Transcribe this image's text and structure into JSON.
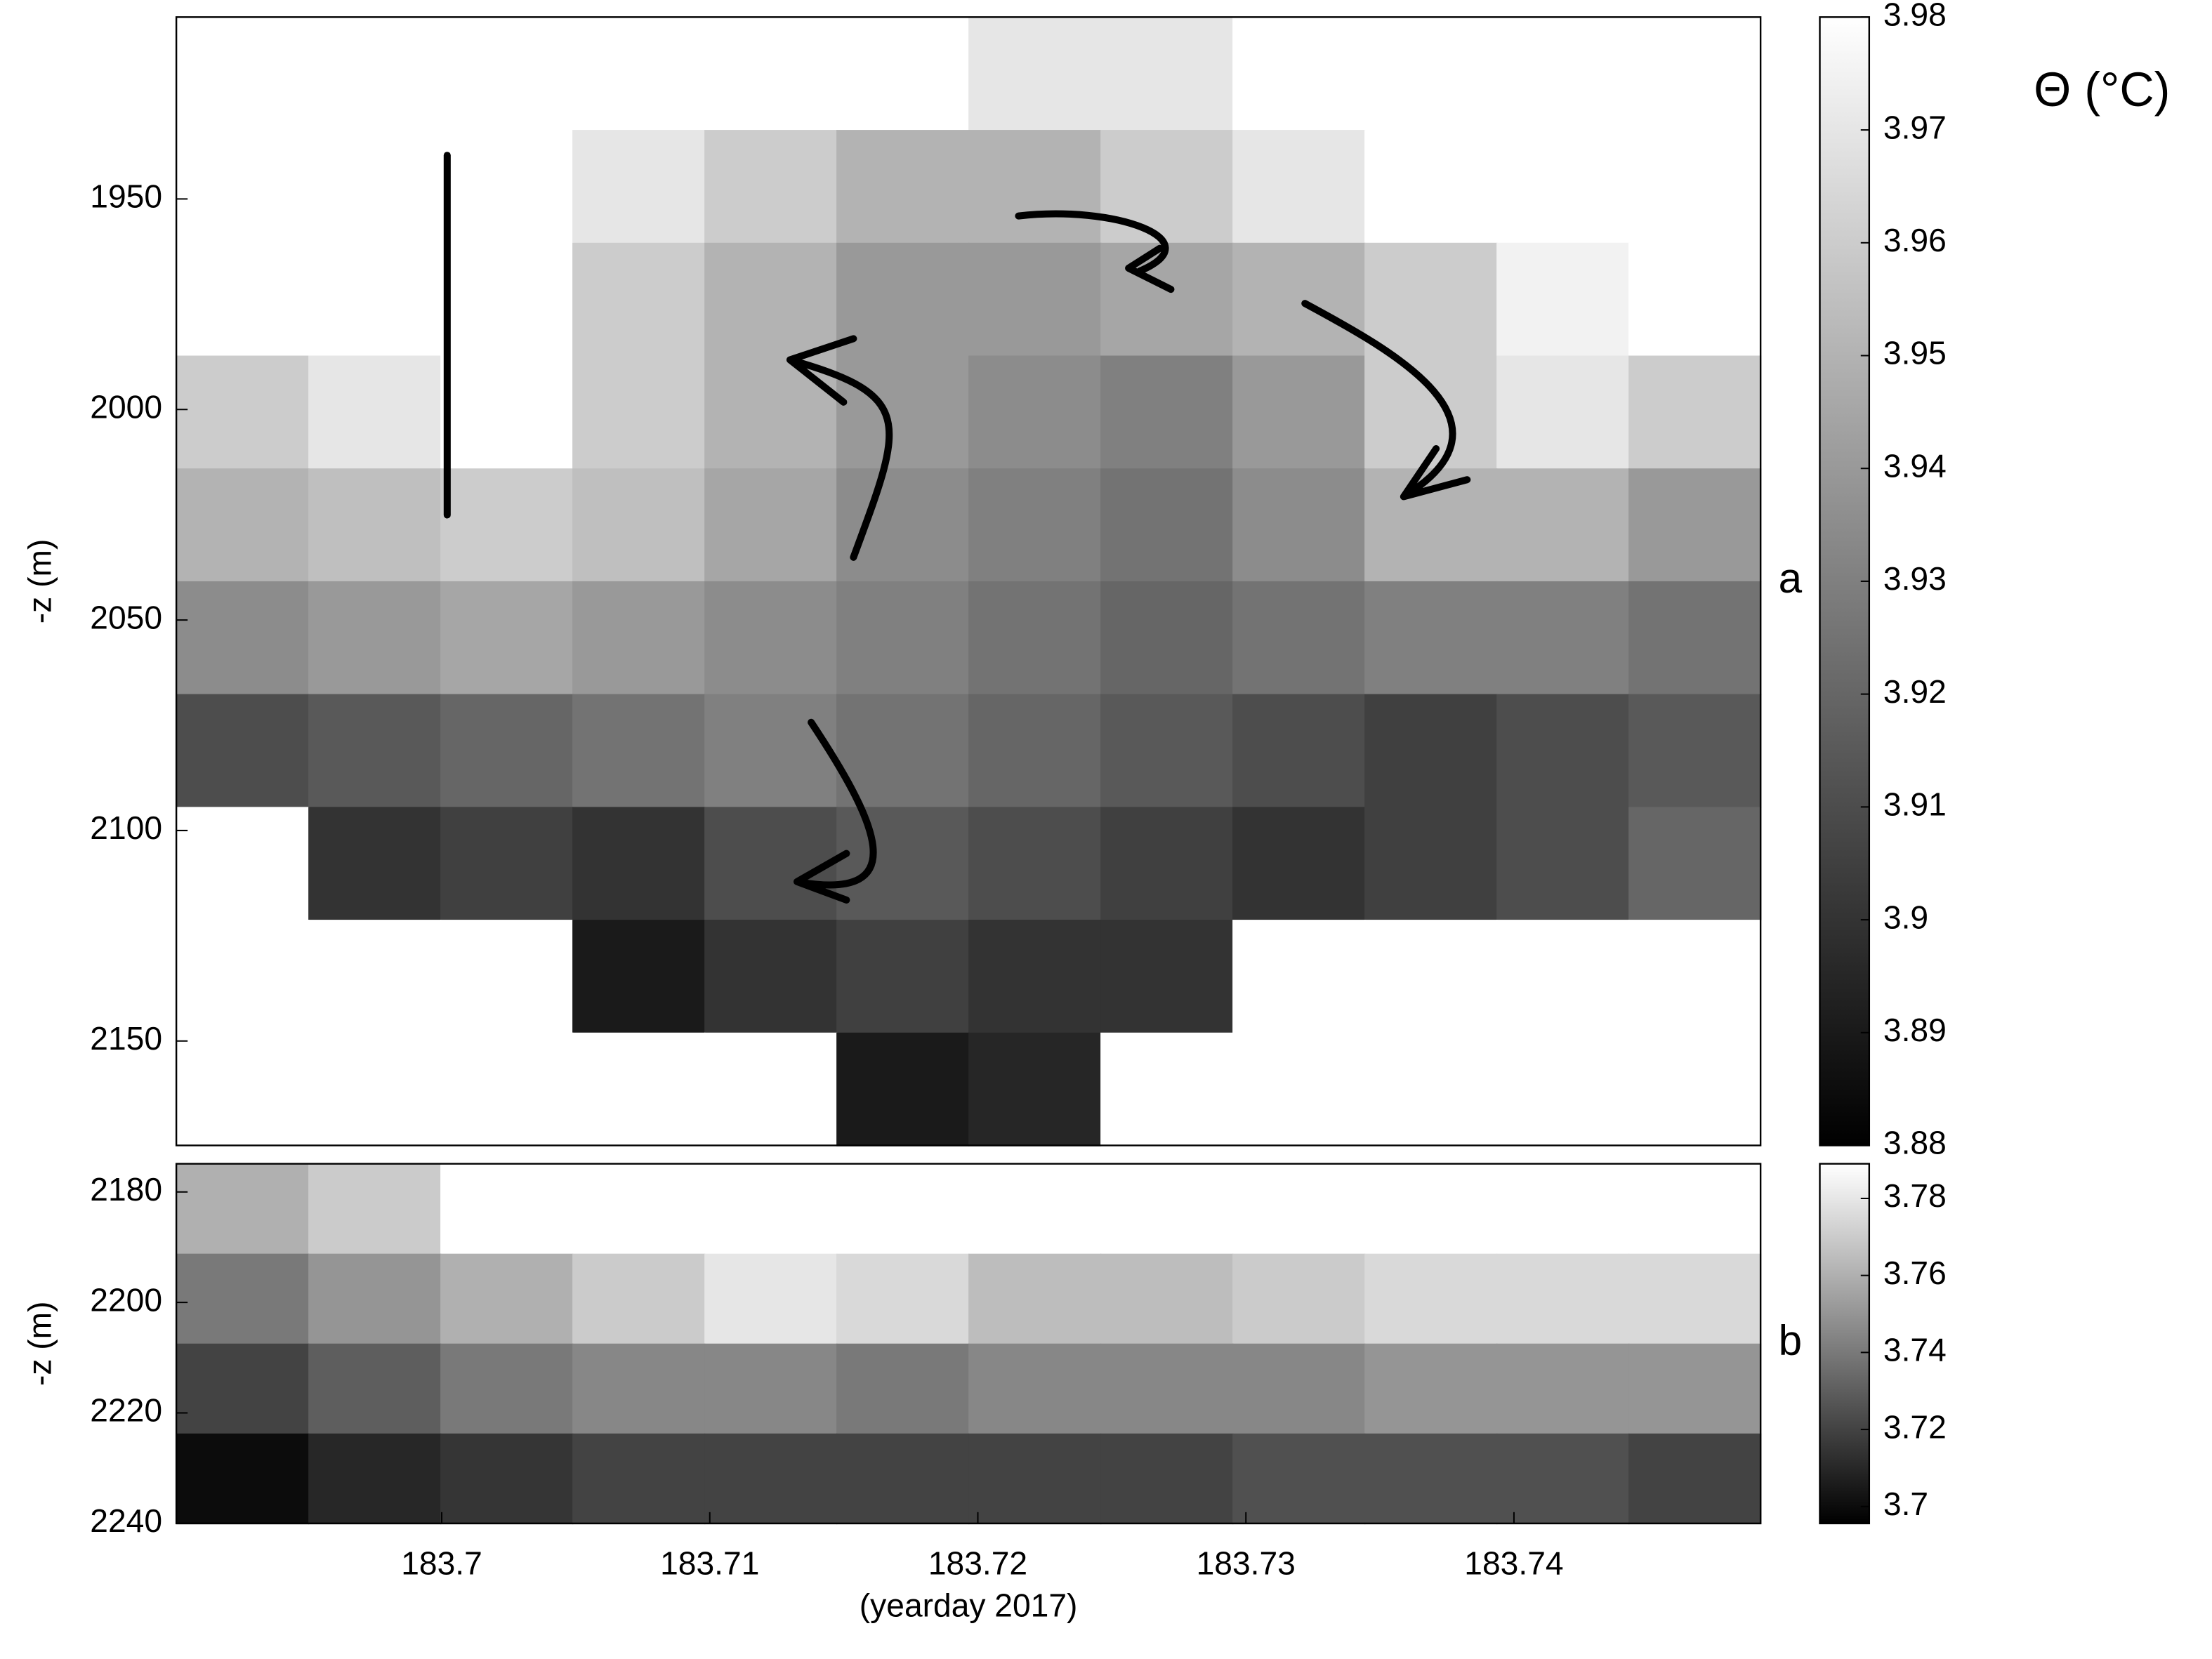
{
  "chart_data": [
    {
      "type": "heatmap",
      "panel_label": "a",
      "ylabel": "-z (m)",
      "colorbar_label": "Θ (°C)",
      "xlim": [
        183.6901,
        183.7492
      ],
      "ylim": [
        2174.8,
        1906.8
      ],
      "yticks": [
        1950,
        2000,
        2050,
        2100,
        2150
      ],
      "clim": [
        3.88,
        3.98
      ],
      "cticks": [
        3.88,
        3.89,
        3.9,
        3.91,
        3.92,
        3.93,
        3.94,
        3.95,
        3.96,
        3.97,
        3.98
      ],
      "z": [
        [
          3.98,
          3.98,
          3.98,
          3.98,
          3.98,
          3.98,
          3.97,
          3.97,
          3.98,
          3.98,
          3.98,
          3.98
        ],
        [
          3.98,
          3.98,
          3.98,
          3.97,
          3.96,
          3.95,
          3.95,
          3.96,
          3.97,
          3.98,
          3.98,
          3.98
        ],
        [
          3.98,
          3.98,
          3.98,
          3.96,
          3.95,
          3.94,
          3.94,
          3.945,
          3.95,
          3.96,
          3.975,
          3.98
        ],
        [
          3.96,
          3.97,
          3.98,
          3.96,
          3.95,
          3.94,
          3.935,
          3.93,
          3.94,
          3.96,
          3.97,
          3.96
        ],
        [
          3.95,
          3.955,
          3.96,
          3.955,
          3.945,
          3.935,
          3.93,
          3.925,
          3.935,
          3.95,
          3.95,
          3.94
        ],
        [
          3.935,
          3.94,
          3.945,
          3.94,
          3.935,
          3.93,
          3.925,
          3.92,
          3.925,
          3.93,
          3.93,
          3.925
        ],
        [
          3.91,
          3.915,
          3.92,
          3.925,
          3.93,
          3.925,
          3.92,
          3.915,
          3.91,
          3.905,
          3.91,
          3.915
        ],
        [
          3.98,
          3.9,
          3.905,
          3.9,
          3.91,
          3.915,
          3.91,
          3.905,
          3.9,
          3.905,
          3.91,
          3.92
        ],
        [
          3.98,
          3.98,
          3.98,
          3.89,
          3.9,
          3.905,
          3.9,
          3.9,
          3.98,
          3.98,
          3.98,
          3.98
        ],
        [
          3.98,
          3.98,
          3.98,
          3.98,
          3.98,
          3.89,
          3.895,
          3.98,
          3.98,
          3.98,
          3.98,
          3.98
        ]
      ]
    },
    {
      "type": "heatmap",
      "panel_label": "b",
      "ylabel": "-z (m)",
      "xlabel": "(yearday 2017)",
      "xlim": [
        183.6901,
        183.7492
      ],
      "xticks": [
        183.7,
        183.71,
        183.72,
        183.73,
        183.74
      ],
      "ylim": [
        2240,
        2174.9
      ],
      "yticks": [
        2180,
        2200,
        2220,
        2240
      ],
      "clim": [
        3.6956,
        3.789
      ],
      "cticks": [
        3.7,
        3.72,
        3.74,
        3.76,
        3.78
      ],
      "z": [
        [
          3.76,
          3.77,
          3.79,
          3.79,
          3.79,
          3.79,
          3.79,
          3.79,
          3.79,
          3.79,
          3.79,
          3.79
        ],
        [
          3.74,
          3.75,
          3.76,
          3.77,
          3.78,
          3.775,
          3.765,
          3.765,
          3.77,
          3.775,
          3.775,
          3.775
        ],
        [
          3.72,
          3.73,
          3.74,
          3.745,
          3.745,
          3.74,
          3.745,
          3.745,
          3.745,
          3.75,
          3.75,
          3.75
        ],
        [
          3.7,
          3.71,
          3.715,
          3.72,
          3.72,
          3.72,
          3.72,
          3.72,
          3.725,
          3.725,
          3.725,
          3.72
        ]
      ]
    }
  ]
}
